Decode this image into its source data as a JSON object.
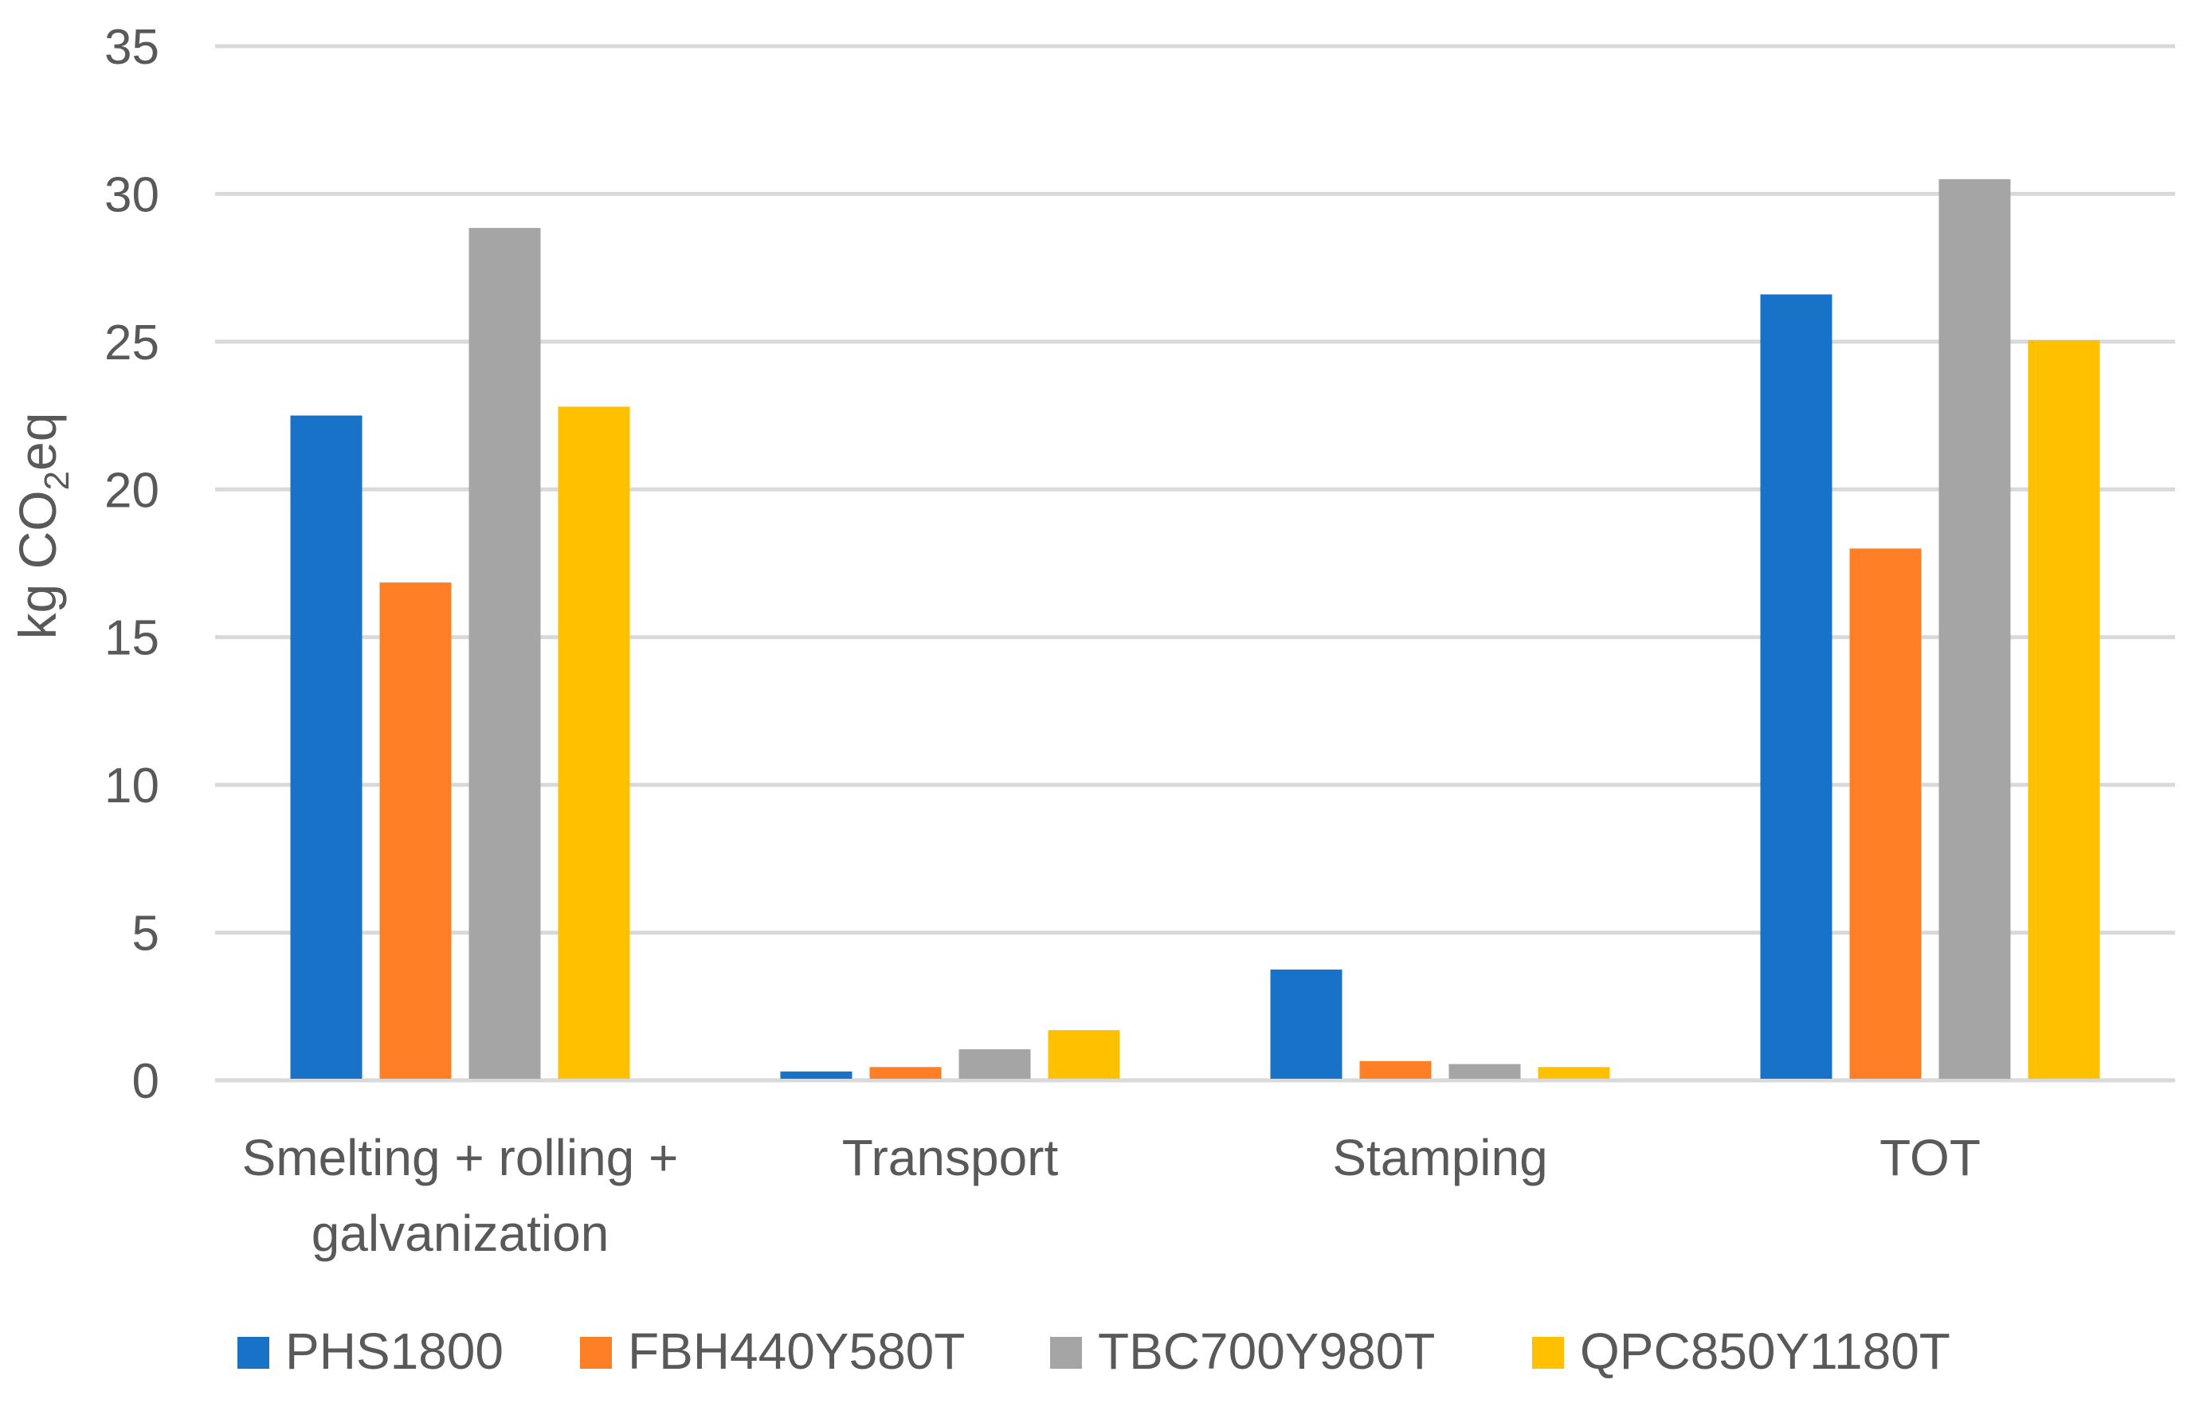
{
  "chart_data": {
    "type": "bar",
    "categories": [
      [
        "Smelting + rolling +",
        "galvanization"
      ],
      [
        "Transport"
      ],
      [
        "Stamping"
      ],
      [
        "TOT"
      ]
    ],
    "series": [
      {
        "name": "PHS1800",
        "color": "#1872C8",
        "values": [
          22.5,
          0.3,
          3.75,
          26.6
        ]
      },
      {
        "name": "FBH440Y580T",
        "color": "#FF7F27",
        "values": [
          16.85,
          0.45,
          0.65,
          18.0
        ]
      },
      {
        "name": "TBC700Y980T",
        "color": "#A5A5A5",
        "values": [
          28.85,
          1.05,
          0.55,
          30.5
        ]
      },
      {
        "name": "QPC850Y1180T",
        "color": "#FFC000",
        "values": [
          22.8,
          1.7,
          0.45,
          25.05
        ]
      }
    ],
    "ylabel": {
      "main": "kg CO",
      "sub": "2",
      "tail": "eq"
    },
    "ylim": [
      0,
      35
    ],
    "yticks": [
      "0",
      "5",
      "10",
      "15",
      "20",
      "25",
      "30",
      "35"
    ],
    "grid": true,
    "legend_position": "bottom"
  }
}
